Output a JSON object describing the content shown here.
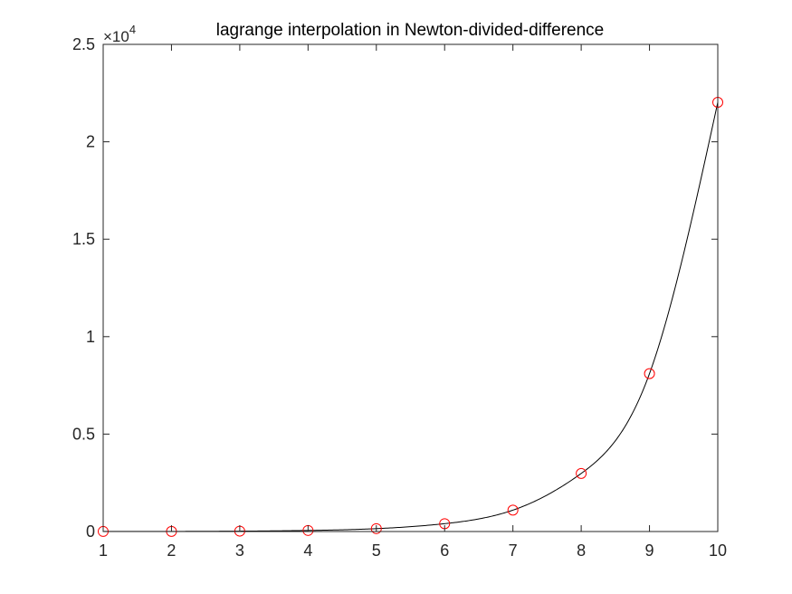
{
  "chart_data": {
    "type": "line",
    "title": "lagrange interpolation in Newton-divided-difference",
    "xlabel": "",
    "ylabel": "",
    "xlim": [
      1,
      10
    ],
    "ylim": [
      0,
      2.5
    ],
    "y_exponent_label": "×10",
    "y_exponent_power": "4",
    "grid": false,
    "x_ticks": [
      1,
      2,
      3,
      4,
      5,
      6,
      7,
      8,
      9,
      10
    ],
    "x_tick_labels": [
      "1",
      "2",
      "3",
      "4",
      "5",
      "6",
      "7",
      "8",
      "9",
      "10"
    ],
    "y_ticks": [
      0,
      0.5,
      1,
      1.5,
      2,
      2.5
    ],
    "y_tick_labels": [
      "0",
      "0.5",
      "1",
      "1.5",
      "2",
      "2.5"
    ],
    "series": [
      {
        "kind": "markers",
        "marker": "circle",
        "color": "#ff0000",
        "x": [
          1,
          2,
          3,
          4,
          5,
          6,
          7,
          8,
          9,
          10
        ],
        "y": [
          0.0003,
          0.0007,
          0.002,
          0.0055,
          0.0148,
          0.0403,
          0.1097,
          0.2981,
          0.8103,
          2.2026
        ]
      },
      {
        "kind": "line",
        "color": "#000000",
        "x": [
          1,
          2,
          3,
          4,
          5,
          6,
          7,
          8,
          9,
          10
        ],
        "y": [
          0.0003,
          0.0007,
          0.002,
          0.0055,
          0.0148,
          0.0403,
          0.1097,
          0.2981,
          0.8103,
          2.2026
        ]
      }
    ]
  }
}
